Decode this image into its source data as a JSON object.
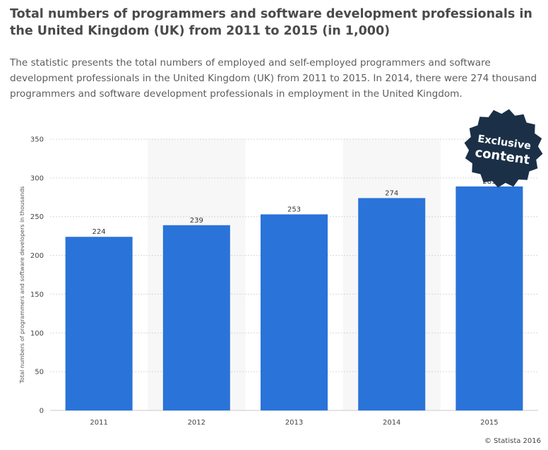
{
  "header": {
    "title": "Total numbers of programmers and software development professionals in the United Kingdom (UK) from 2011 to 2015 (in 1,000)",
    "description": "The statistic presents the total numbers of employed and self-employed programmers and software development professionals in the United Kingdom (UK) from 2011 to 2015. In 2014, there were 274 thousand programmers and software development professionals in employment in the United Kingdom."
  },
  "badge": {
    "line1": "Exclusive",
    "line2": "content",
    "color": "#1b3047"
  },
  "credit": "© Statista 2016",
  "colors": {
    "bar": "#2a73d9",
    "band": "#f7f7f7",
    "grid": "#d6d6d6"
  },
  "chart_data": {
    "type": "bar",
    "categories": [
      "2011",
      "2012",
      "2013",
      "2014",
      "2015"
    ],
    "values": [
      224,
      239,
      253,
      274,
      289
    ],
    "data_labels": [
      "224",
      "239",
      "253",
      "274",
      "289"
    ],
    "title": "Total numbers of programmers and software development professionals in the United Kingdom (UK) from 2011 to 2015 (in 1,000)",
    "xlabel": "",
    "ylabel": "Total numbers of programmers and software developers in thousands",
    "ylim": [
      0,
      350
    ],
    "yticks": [
      0,
      50,
      100,
      150,
      200,
      250,
      300,
      350
    ],
    "grid": true,
    "legend": "none"
  }
}
